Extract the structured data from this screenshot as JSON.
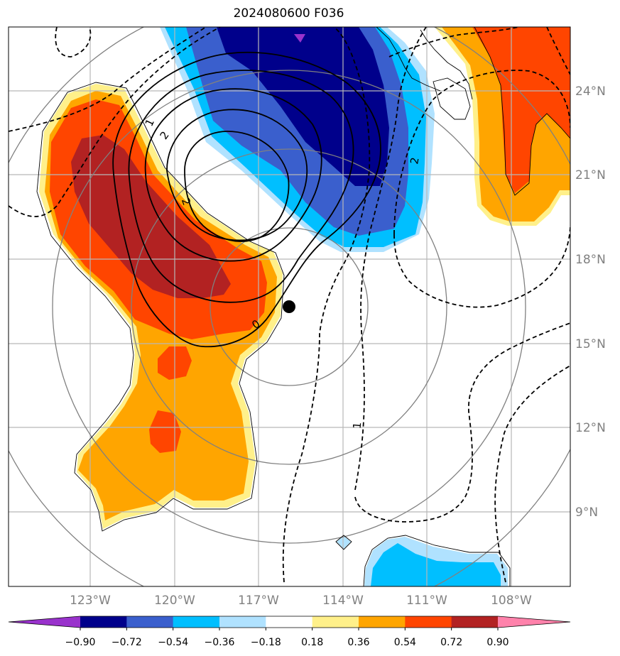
{
  "title": "2024080600 F036",
  "lat_labels": [
    "24°N",
    "21°N",
    "18°N",
    "15°N",
    "12°N",
    "9°N"
  ],
  "lon_labels": [
    "123°W",
    "120°W",
    "117°W",
    "114°W",
    "111°W",
    "108°W"
  ],
  "contour_labels": [
    "1",
    "2",
    "2",
    "0",
    "2",
    "1"
  ],
  "colorbar": {
    "ticks": [
      "−0.90",
      "−0.72",
      "−0.54",
      "−0.36",
      "−0.18",
      "0.18",
      "0.36",
      "0.54",
      "0.72",
      "0.90"
    ],
    "colors": [
      "#9932cc",
      "#00008b",
      "#3a5fcd",
      "#00bfff",
      "#b0e2ff",
      "#ffffff",
      "#fff08a",
      "#ffa500",
      "#ff4500",
      "#b22222",
      "#ff82ab"
    ]
  },
  "palette": {
    "axis_label": "#808080",
    "grid": "#b8b8b8",
    "range_ring": "#808080",
    "coast": "#000000"
  },
  "marker": {
    "name": "storm-center",
    "color": "#000000"
  }
}
